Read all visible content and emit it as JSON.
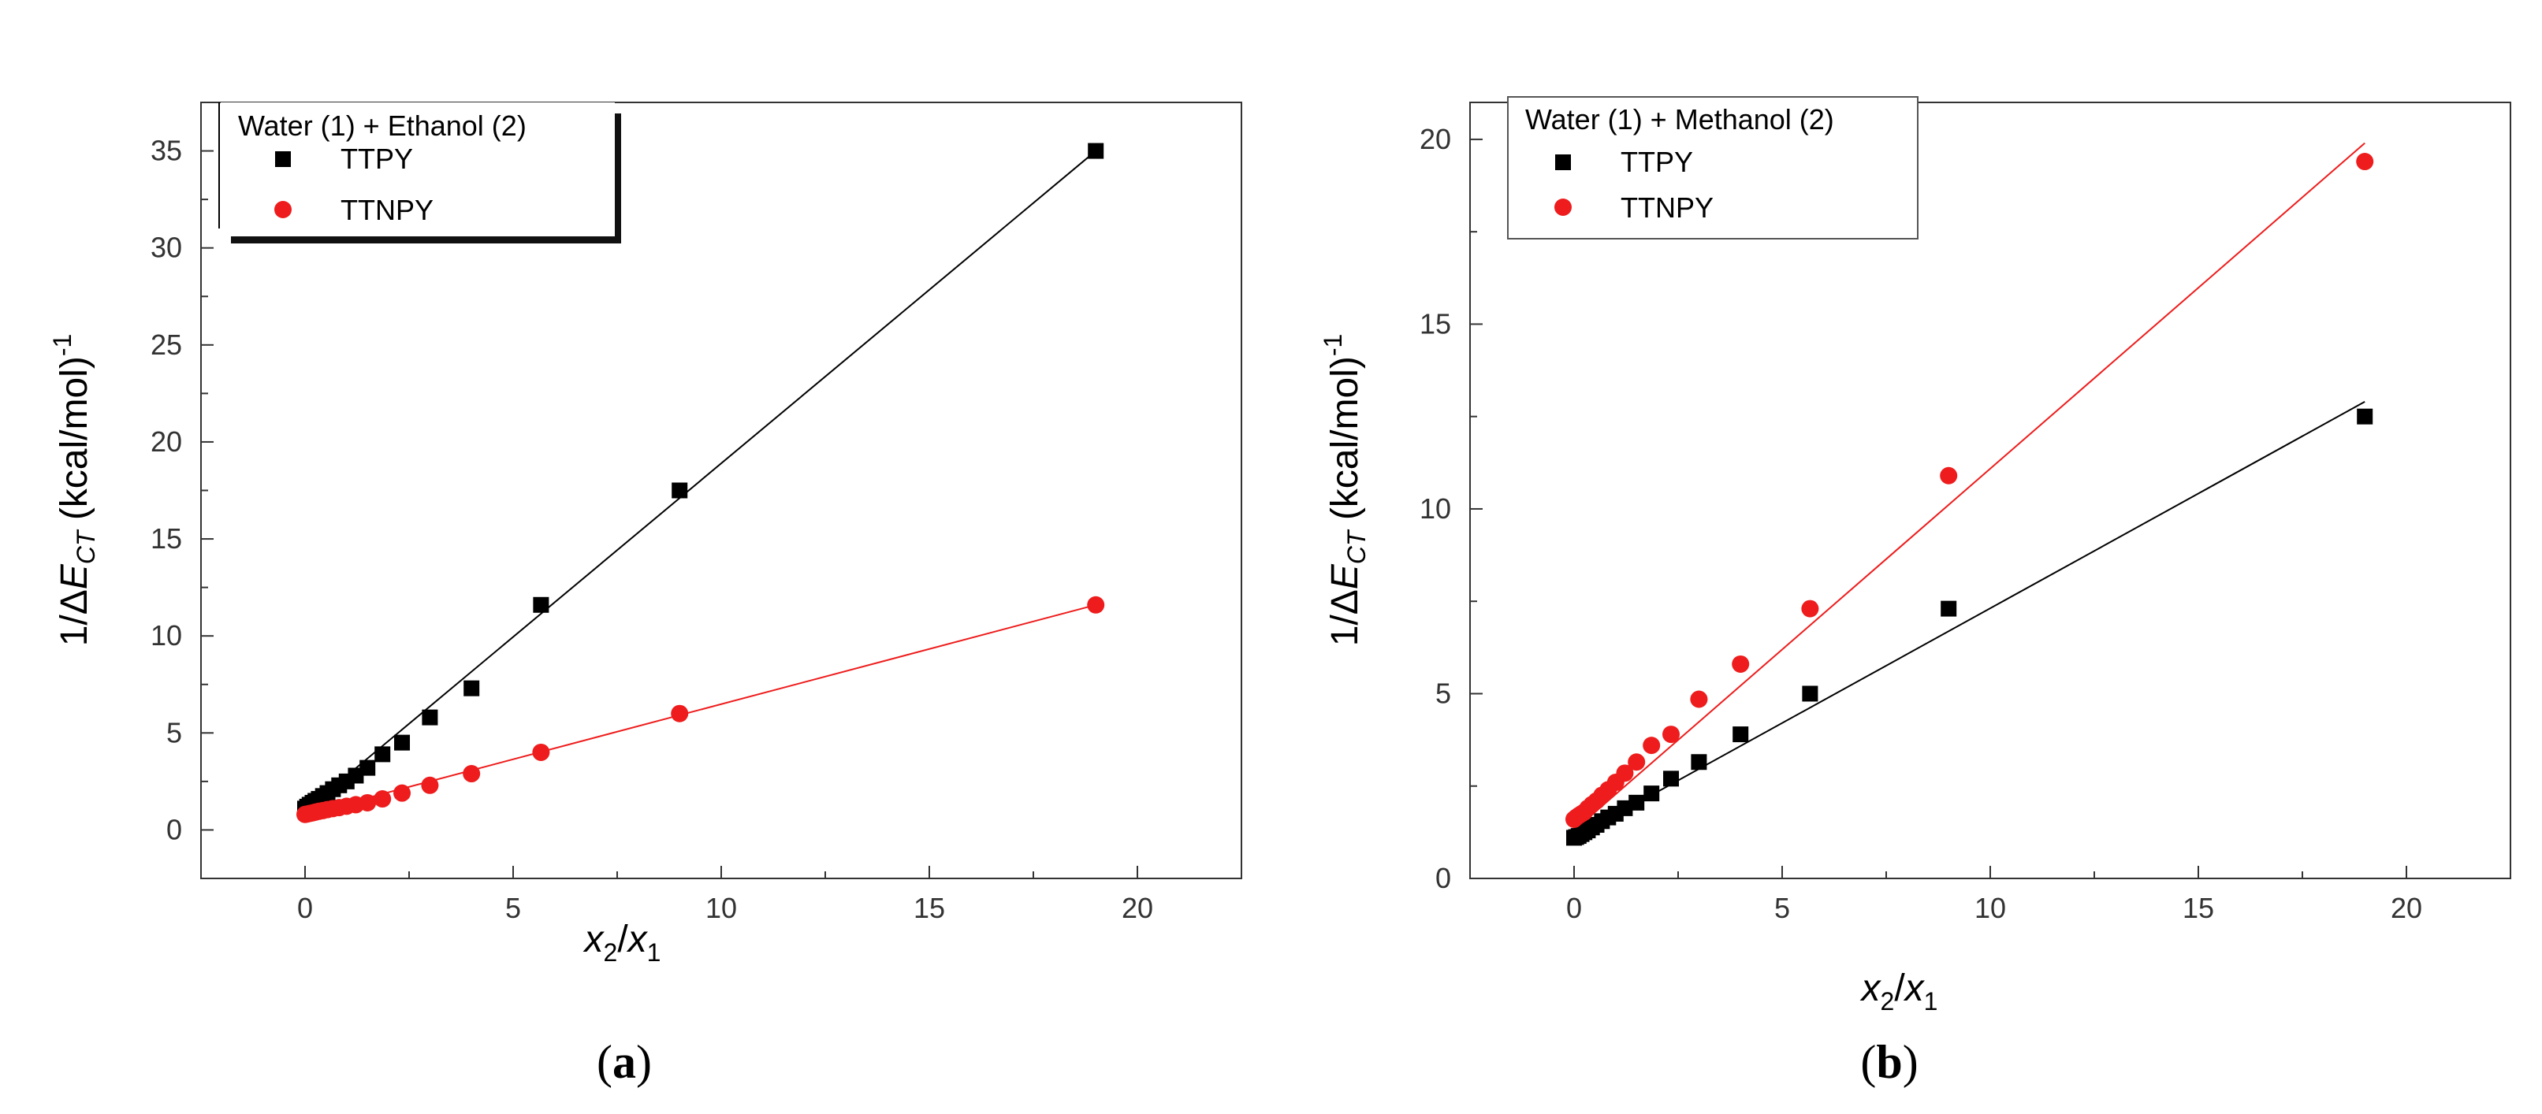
{
  "chart_data": [
    {
      "type": "scatter",
      "panel_label": "a",
      "legend_title": "Water (1) + Ethanol (2)",
      "xlabel": "x2/x1",
      "ylabel": "1/ΔECT (kcal/mol)-1",
      "xlim": [
        -2.5,
        22.5
      ],
      "ylim": [
        -2.5,
        37.5
      ],
      "xticks": [
        0,
        5,
        10,
        15,
        20
      ],
      "yticks": [
        0,
        5,
        10,
        15,
        20,
        25,
        30,
        35
      ],
      "series": [
        {
          "name": "TTPY",
          "color": "#000000",
          "marker": "square",
          "x": [
            0,
            0.05,
            0.11,
            0.18,
            0.25,
            0.33,
            0.43,
            0.54,
            0.67,
            0.82,
            1.0,
            1.22,
            1.5,
            1.86,
            2.33,
            3.0,
            4.0,
            5.67,
            9.0,
            19.0
          ],
          "y": [
            1.1,
            1.2,
            1.3,
            1.4,
            1.5,
            1.6,
            1.75,
            1.9,
            2.1,
            2.3,
            2.5,
            2.8,
            3.2,
            3.9,
            4.5,
            5.8,
            7.3,
            11.6,
            17.5,
            35.0
          ],
          "fit": [
            1.0,
            35.0
          ]
        },
        {
          "name": "TTNPY",
          "color": "#ee1c1c",
          "marker": "circle",
          "x": [
            0,
            0.05,
            0.11,
            0.18,
            0.25,
            0.33,
            0.43,
            0.54,
            0.67,
            0.82,
            1.0,
            1.22,
            1.5,
            1.86,
            2.33,
            3.0,
            4.0,
            5.67,
            9.0,
            19.0
          ],
          "y": [
            0.8,
            0.82,
            0.85,
            0.88,
            0.92,
            0.96,
            1.0,
            1.05,
            1.1,
            1.15,
            1.22,
            1.3,
            1.4,
            1.6,
            1.9,
            2.3,
            2.9,
            4.0,
            6.0,
            11.6
          ],
          "fit": [
            0.8,
            11.6
          ]
        }
      ]
    },
    {
      "type": "scatter",
      "panel_label": "b",
      "legend_title": "Water (1) + Methanol (2)",
      "xlabel": "x2/x1",
      "ylabel": "1/ΔECT (kcal/mol)-1",
      "xlim": [
        -2.5,
        22.5
      ],
      "ylim": [
        0,
        21
      ],
      "xticks": [
        0,
        5,
        10,
        15,
        20
      ],
      "yticks": [
        0,
        5,
        10,
        15,
        20
      ],
      "series": [
        {
          "name": "TTPY",
          "color": "#000000",
          "marker": "square",
          "x": [
            0,
            0.05,
            0.11,
            0.18,
            0.25,
            0.33,
            0.43,
            0.54,
            0.67,
            0.82,
            1.0,
            1.22,
            1.5,
            1.86,
            2.33,
            3.0,
            4.0,
            5.67,
            9.0,
            19.0
          ],
          "y": [
            1.1,
            1.12,
            1.15,
            1.2,
            1.25,
            1.3,
            1.38,
            1.45,
            1.55,
            1.65,
            1.75,
            1.9,
            2.05,
            2.3,
            2.7,
            3.15,
            3.9,
            5.0,
            7.3,
            12.5
          ],
          "fit": [
            1.1,
            12.9
          ]
        },
        {
          "name": "TTNPY",
          "color": "#ee1c1c",
          "marker": "circle",
          "x": [
            0,
            0.05,
            0.11,
            0.18,
            0.25,
            0.33,
            0.43,
            0.54,
            0.67,
            0.82,
            1.0,
            1.22,
            1.5,
            1.86,
            2.33,
            3.0,
            4.0,
            5.67,
            9.0,
            19.0
          ],
          "y": [
            1.6,
            1.65,
            1.7,
            1.75,
            1.8,
            1.9,
            2.0,
            2.1,
            2.25,
            2.4,
            2.6,
            2.85,
            3.15,
            3.6,
            3.9,
            4.85,
            5.8,
            7.3,
            10.9,
            19.4
          ],
          "fit": [
            1.3,
            19.9
          ]
        }
      ]
    }
  ]
}
